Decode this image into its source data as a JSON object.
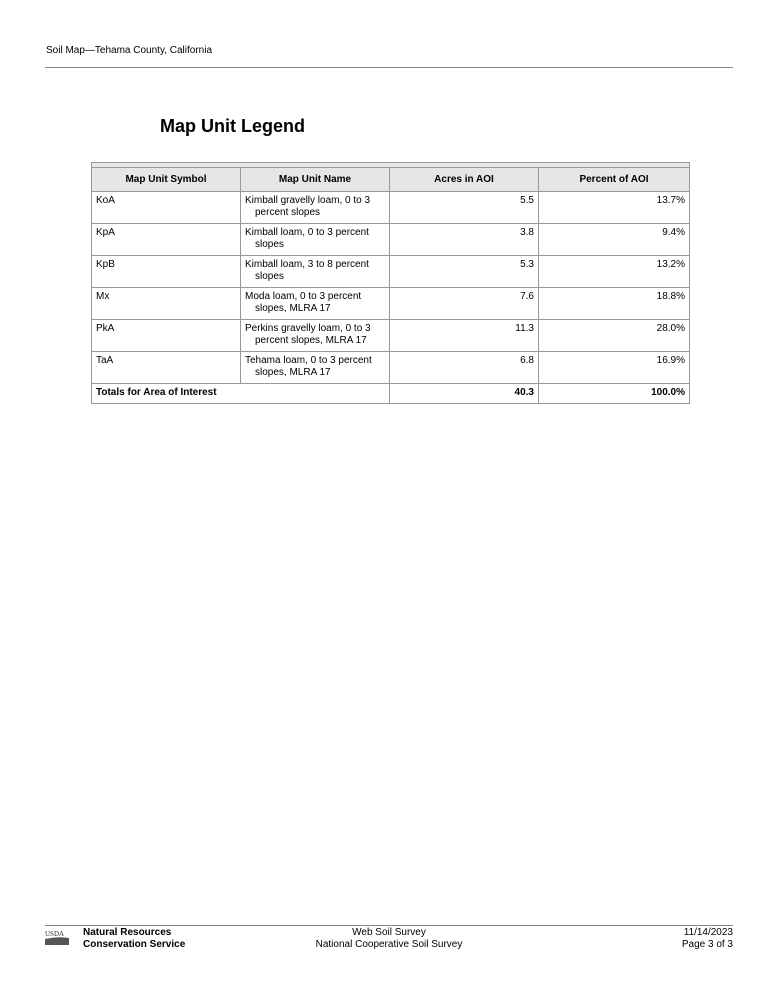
{
  "header": {
    "title": "Soil Map—Tehama County, California"
  },
  "heading": "Map Unit Legend",
  "table": {
    "columns": [
      "Map Unit Symbol",
      "Map Unit Name",
      "Acres in AOI",
      "Percent of AOI"
    ],
    "rows": [
      {
        "symbol": "KoA",
        "name1": "Kimball gravelly loam, 0 to 3",
        "name2": "percent slopes",
        "acres": "5.5",
        "percent": "13.7%"
      },
      {
        "symbol": "KpA",
        "name1": "Kimball loam, 0 to 3 percent",
        "name2": "slopes",
        "acres": "3.8",
        "percent": "9.4%"
      },
      {
        "symbol": "KpB",
        "name1": "Kimball loam, 3 to 8 percent",
        "name2": "slopes",
        "acres": "5.3",
        "percent": "13.2%"
      },
      {
        "symbol": "Mx",
        "name1": "Moda loam, 0 to 3 percent",
        "name2": "slopes, MLRA 17",
        "acres": "7.6",
        "percent": "18.8%"
      },
      {
        "symbol": "PkA",
        "name1": "Perkins gravelly loam, 0 to 3",
        "name2": "percent slopes, MLRA 17",
        "acres": "11.3",
        "percent": "28.0%"
      },
      {
        "symbol": "TaA",
        "name1": "Tehama loam, 0 to 3 percent",
        "name2": "slopes, MLRA 17",
        "acres": "6.8",
        "percent": "16.9%"
      }
    ],
    "totals": {
      "label": "Totals for Area of Interest",
      "acres": "40.3",
      "percent": "100.0%"
    }
  },
  "footer": {
    "logo": "USDA",
    "agency1": "Natural Resources",
    "agency2": "Conservation Service",
    "center1": "Web Soil Survey",
    "center2": "National Cooperative Soil Survey",
    "date": "11/14/2023",
    "page": "Page 3 of 3"
  }
}
